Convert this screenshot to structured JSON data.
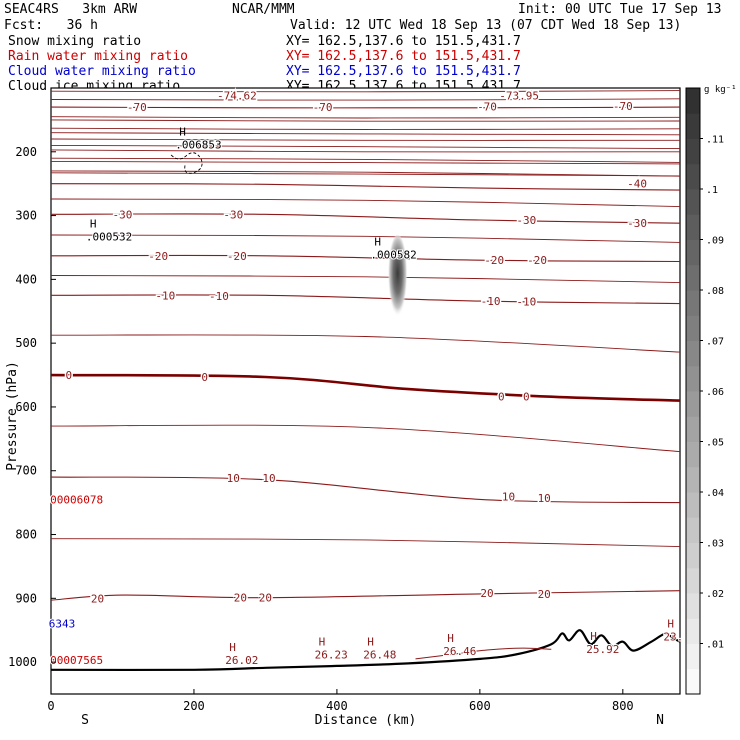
{
  "header": {
    "model": "SEAC4RS   3km ARW",
    "org": "NCAR/MMM",
    "init": "Init: 00 UTC Tue 17 Sep 13",
    "fcst": "Fcst:   36 h",
    "valid": "Valid: 12 UTC Wed 18 Sep 13 (07 CDT Wed 18 Sep 13)"
  },
  "legend": [
    {
      "label": "Snow mixing ratio",
      "xy": "XY= 162.5,137.6 to 151.5,431.7",
      "color": "#000000"
    },
    {
      "label": "Rain water mixing ratio",
      "xy": "XY= 162.5,137.6 to 151.5,431.7",
      "color": "#cc0000"
    },
    {
      "label": "Cloud water mixing ratio",
      "xy": "XY= 162.5,137.6 to 151.5,431.7",
      "color": "#0000cc"
    },
    {
      "label": "Cloud ice mixing ratio",
      "xy": "XY= 162.5,137.6 to 151.5,431.7",
      "color": "#000000"
    }
  ],
  "chart_data": {
    "type": "cross-section",
    "xlabel": "Distance (km)",
    "ylabel": "Pressure (hPa)",
    "x_ticks": [
      0,
      200,
      400,
      600,
      800
    ],
    "y_ticks": [
      200,
      300,
      400,
      500,
      600,
      700,
      800,
      900,
      1000
    ],
    "xlim": [
      0,
      880
    ],
    "ylim": [
      1050,
      100
    ],
    "x_endpoints": {
      "left": "S",
      "right": "N"
    },
    "colorbar": {
      "unit": "g kg⁻¹",
      "ticks": [
        ".01",
        ".02",
        ".03",
        ".04",
        ".05",
        ".06",
        ".07",
        ".08",
        ".09",
        ".1",
        ".11"
      ],
      "range": [
        0,
        0.12
      ]
    },
    "temperature_contours": [
      {
        "label": "-70",
        "line_color": "#8b1a1a",
        "points": [
          [
            0,
            130
          ],
          [
            300,
            131
          ],
          [
            600,
            131
          ],
          [
            880,
            130
          ]
        ]
      },
      {
        "label": "-40",
        "line_color": "#8b1a1a",
        "points": [
          [
            0,
            250
          ],
          [
            300,
            251
          ],
          [
            600,
            257
          ],
          [
            880,
            260
          ]
        ]
      },
      {
        "label": "-30",
        "line_color": "#8b1a1a",
        "points": [
          [
            0,
            298
          ],
          [
            300,
            298
          ],
          [
            600,
            307
          ],
          [
            880,
            312
          ]
        ]
      },
      {
        "label": "-20",
        "line_color": "#8b1a1a",
        "points": [
          [
            0,
            363
          ],
          [
            300,
            363
          ],
          [
            600,
            370
          ],
          [
            880,
            372
          ]
        ]
      },
      {
        "label": "-10",
        "line_color": "#8b1a1a",
        "points": [
          [
            0,
            425
          ],
          [
            300,
            425
          ],
          [
            600,
            434
          ],
          [
            880,
            438
          ]
        ]
      },
      {
        "label": "0",
        "line_color": "#7a0000",
        "points": [
          [
            0,
            550
          ],
          [
            300,
            553
          ],
          [
            500,
            572
          ],
          [
            700,
            584
          ],
          [
            880,
            590
          ]
        ]
      },
      {
        "label": "10",
        "line_color": "#8b1a1a",
        "points": [
          [
            0,
            710
          ],
          [
            300,
            714
          ],
          [
            600,
            745
          ],
          [
            880,
            750
          ]
        ]
      },
      {
        "label": "20",
        "line_color": "#8b1a1a",
        "points": [
          [
            0,
            903
          ],
          [
            100,
            895
          ],
          [
            300,
            899
          ],
          [
            600,
            893
          ],
          [
            880,
            888
          ]
        ]
      }
    ],
    "contour_labels": [
      {
        "x": 120,
        "p": 130,
        "text": "-70"
      },
      {
        "x": 380,
        "p": 130,
        "text": "-70"
      },
      {
        "x": 610,
        "p": 129,
        "text": "-70"
      },
      {
        "x": 800,
        "p": 128,
        "text": "-70"
      },
      {
        "x": 655,
        "p": 112,
        "text": "-73.95"
      },
      {
        "x": 260,
        "p": 112,
        "text": "-74.62"
      },
      {
        "x": 820,
        "p": 250,
        "text": "-40"
      },
      {
        "x": 100,
        "p": 298,
        "text": "-30"
      },
      {
        "x": 255,
        "p": 298,
        "text": "-30"
      },
      {
        "x": 665,
        "p": 307,
        "text": "-30"
      },
      {
        "x": 820,
        "p": 312,
        "text": "-30"
      },
      {
        "x": 150,
        "p": 363,
        "text": "-20"
      },
      {
        "x": 260,
        "p": 363,
        "text": "-20"
      },
      {
        "x": 620,
        "p": 370,
        "text": "-20"
      },
      {
        "x": 680,
        "p": 370,
        "text": "-20"
      },
      {
        "x": 160,
        "p": 425,
        "text": "-10"
      },
      {
        "x": 235,
        "p": 426,
        "text": "-10"
      },
      {
        "x": 615,
        "p": 434,
        "text": "-10"
      },
      {
        "x": 665,
        "p": 435,
        "text": "-10"
      },
      {
        "x": 25,
        "p": 550,
        "text": "0"
      },
      {
        "x": 215,
        "p": 553,
        "text": "0"
      },
      {
        "x": 630,
        "p": 584,
        "text": "0"
      },
      {
        "x": 665,
        "p": 584,
        "text": "0"
      },
      {
        "x": 255,
        "p": 711,
        "text": "10"
      },
      {
        "x": 305,
        "p": 711,
        "text": "10"
      },
      {
        "x": 640,
        "p": 740,
        "text": "10"
      },
      {
        "x": 690,
        "p": 743,
        "text": "10"
      },
      {
        "x": 65,
        "p": 900,
        "text": "20"
      },
      {
        "x": 265,
        "p": 899,
        "text": "20"
      },
      {
        "x": 300,
        "p": 899,
        "text": "20"
      },
      {
        "x": 610,
        "p": 892,
        "text": "20"
      },
      {
        "x": 690,
        "p": 893,
        "text": "20"
      }
    ],
    "extrema": [
      {
        "x": 185,
        "p": 184,
        "mark": "H",
        "value": ".006853",
        "color": "#000000"
      },
      {
        "x": 60,
        "p": 328,
        "mark": "H",
        "value": ".000532",
        "color": "#000000"
      },
      {
        "x": 458,
        "p": 356,
        "mark": "H",
        "value": ".000582",
        "color": "#000000"
      },
      {
        "x": 10,
        "p": 740,
        "mark": "",
        "value": "00006078",
        "color": "#cc0000"
      },
      {
        "x": 8,
        "p": 935,
        "mark": "",
        "value": "6343",
        "color": "#0000cc"
      },
      {
        "x": 10,
        "p": 992,
        "mark": "",
        "value": "00007565",
        "color": "#cc0000"
      },
      {
        "x": 255,
        "p": 992,
        "mark": "H",
        "value": "26.02",
        "color": "#8b1a1a"
      },
      {
        "x": 380,
        "p": 983,
        "mark": "H",
        "value": "26.23",
        "color": "#8b1a1a"
      },
      {
        "x": 448,
        "p": 983,
        "mark": "H",
        "value": "26.48",
        "color": "#8b1a1a"
      },
      {
        "x": 560,
        "p": 978,
        "mark": "H",
        "value": "26.46",
        "color": "#8b1a1a"
      },
      {
        "x": 760,
        "p": 975,
        "mark": "H",
        "value": "25.92",
        "color": "#8b1a1a"
      },
      {
        "x": 868,
        "p": 955,
        "mark": "H",
        "value": "23.",
        "color": "#8b1a1a"
      }
    ],
    "cloud_ice_plume": {
      "x": 485,
      "p_top": 330,
      "p_bottom": 465,
      "max_value": 0.1
    },
    "terrain_surface": [
      [
        0,
        1012
      ],
      [
        200,
        1012
      ],
      [
        300,
        1009
      ],
      [
        400,
        1006
      ],
      [
        500,
        1002
      ],
      [
        600,
        995
      ],
      [
        650,
        988
      ],
      [
        700,
        972
      ],
      [
        715,
        955
      ],
      [
        725,
        966
      ],
      [
        740,
        950
      ],
      [
        755,
        972
      ],
      [
        770,
        958
      ],
      [
        785,
        975
      ],
      [
        800,
        968
      ],
      [
        815,
        982
      ],
      [
        840,
        968
      ],
      [
        860,
        955
      ],
      [
        870,
        962
      ],
      [
        880,
        968
      ]
    ]
  }
}
